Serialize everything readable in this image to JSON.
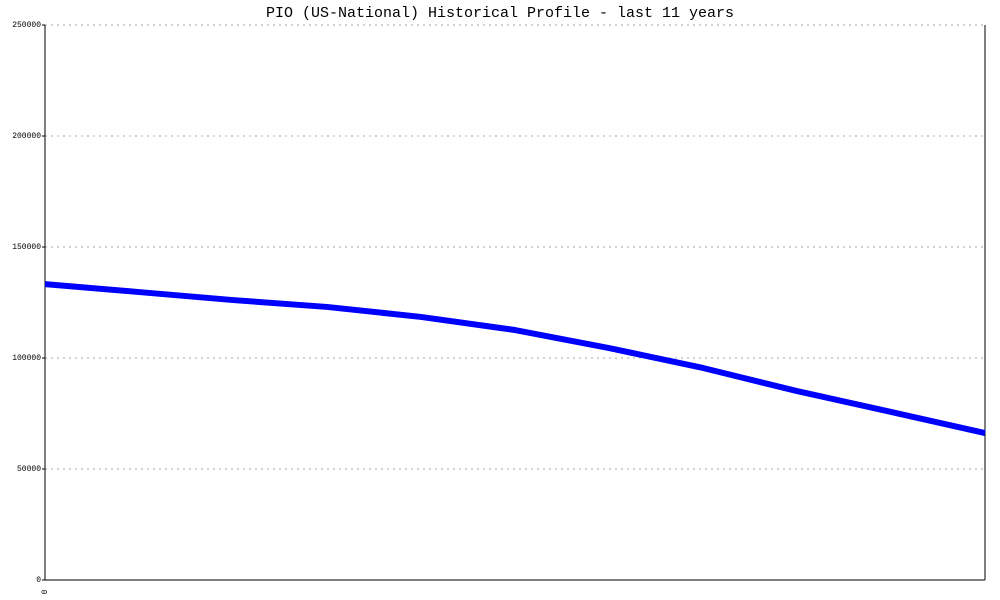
{
  "chart_data": {
    "type": "line",
    "title": "PIO (US-National) Historical Profile - last 11 years",
    "categories": [
      "0",
      null,
      null,
      null,
      null,
      null,
      null,
      null,
      null,
      null,
      null
    ],
    "values": [
      133300,
      129700,
      126100,
      123000,
      118500,
      112600,
      104500,
      95500,
      85100,
      75700,
      66200
    ],
    "color": "#0000ff",
    "ylim": [
      0,
      250000
    ],
    "yticks": [
      0,
      50000,
      100000,
      150000,
      200000,
      250000
    ],
    "grid": true
  }
}
